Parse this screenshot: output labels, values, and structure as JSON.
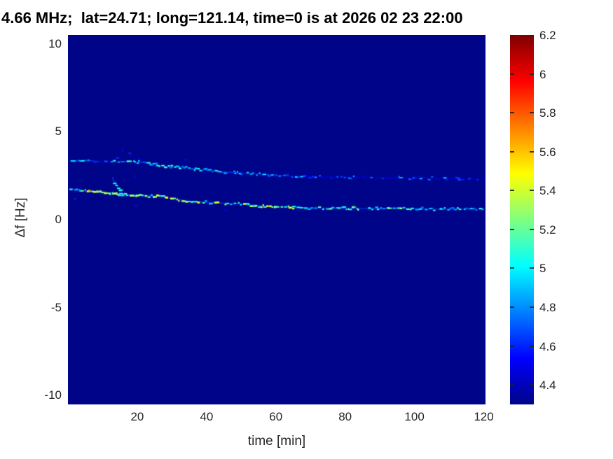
{
  "chart_data": {
    "type": "heatmap",
    "title": "4.66 MHz;  lat=24.71; long=121.14, time=0 is at 2026 02 23 22:00",
    "xlabel": "time [min]",
    "ylabel": "Δf [Hz]",
    "xlim": [
      0,
      120.5
    ],
    "ylim": [
      -10.5,
      10.5
    ],
    "grid": false,
    "x_ticks": [
      20,
      40,
      60,
      80,
      100,
      120
    ],
    "x_tick_labels": [
      "20",
      "40",
      "60",
      "80",
      "100",
      "120"
    ],
    "y_ticks": [
      10,
      5,
      0,
      -5,
      -10
    ],
    "y_tick_labels": [
      "10",
      "5",
      "0",
      "-5",
      "-10"
    ],
    "colorbar": {
      "position": "right",
      "min": 4.3,
      "max": 6.2,
      "ticks": [
        6.2,
        6,
        5.8,
        5.6,
        5.4,
        5.2,
        5,
        4.8,
        4.6,
        4.4
      ],
      "tick_labels": [
        "6.2",
        "6",
        "5.8",
        "5.6",
        "5.4",
        "5.2",
        "5",
        "4.8",
        "4.6",
        "4.4"
      ]
    },
    "colormap": {
      "name": "jet",
      "stops": [
        [
          0,
          "#000487"
        ],
        [
          0.125,
          "#0000ff"
        ],
        [
          0.375,
          "#00ffff"
        ],
        [
          0.625,
          "#ffff00"
        ],
        [
          0.875,
          "#ff0000"
        ],
        [
          1,
          "#800000"
        ]
      ]
    },
    "background_value": 4.3,
    "background_color": "#000489",
    "axes_color": "#262626",
    "title_color": "#000000",
    "seed": 11,
    "series": [
      {
        "name": "upper-trace",
        "style": "speckle-line",
        "points": [
          [
            1,
            3.32,
            4.9,
            0.75
          ],
          [
            4,
            3.36,
            4.9,
            0.8
          ],
          [
            7,
            3.34,
            4.85,
            0.75
          ],
          [
            9,
            3.3,
            4.7,
            0.3
          ],
          [
            12,
            3.27,
            4.8,
            0.35
          ],
          [
            15,
            3.3,
            4.95,
            0.8
          ],
          [
            18,
            3.3,
            4.9,
            0.85
          ],
          [
            21,
            3.27,
            4.9,
            0.85
          ],
          [
            24,
            3.18,
            4.95,
            0.85
          ],
          [
            27,
            3.06,
            5.0,
            0.85
          ],
          [
            30,
            3.0,
            4.95,
            0.8
          ],
          [
            34,
            2.95,
            4.9,
            0.8
          ],
          [
            38,
            2.85,
            4.95,
            0.8
          ],
          [
            42,
            2.78,
            4.9,
            0.8
          ],
          [
            46,
            2.7,
            4.85,
            0.75
          ],
          [
            50,
            2.66,
            4.8,
            0.75
          ],
          [
            55,
            2.6,
            4.8,
            0.7
          ],
          [
            60,
            2.52,
            4.8,
            0.7
          ],
          [
            64,
            2.48,
            4.75,
            0.6
          ],
          [
            68,
            2.46,
            4.72,
            0.55
          ],
          [
            72,
            2.45,
            4.65,
            0.5
          ],
          [
            78,
            2.43,
            4.7,
            0.55
          ],
          [
            84,
            2.41,
            4.7,
            0.5
          ],
          [
            90,
            2.4,
            4.65,
            0.5
          ],
          [
            96,
            2.38,
            4.7,
            0.5
          ],
          [
            102,
            2.36,
            4.65,
            0.45
          ],
          [
            108,
            2.35,
            4.67,
            0.45
          ],
          [
            114,
            2.33,
            4.6,
            0.45
          ],
          [
            120,
            2.31,
            4.65,
            0.5
          ]
        ]
      },
      {
        "name": "lower-trace",
        "style": "speckle-line",
        "points": [
          [
            0.5,
            1.78,
            4.95,
            0.8
          ],
          [
            2,
            1.72,
            4.9,
            0.7
          ],
          [
            4,
            1.65,
            5.0,
            0.75
          ],
          [
            6,
            1.6,
            5.4,
            0.85
          ],
          [
            8,
            1.56,
            5.5,
            0.9
          ],
          [
            10,
            1.52,
            5.3,
            0.85
          ],
          [
            12,
            1.47,
            5.1,
            0.8
          ],
          [
            14,
            1.44,
            5.2,
            0.85
          ],
          [
            16,
            1.42,
            5.15,
            0.85
          ],
          [
            18,
            1.4,
            5.2,
            0.85
          ],
          [
            20,
            1.39,
            5.1,
            0.85
          ],
          [
            22,
            1.37,
            5.15,
            0.85
          ],
          [
            24,
            1.34,
            5.2,
            0.85
          ],
          [
            26,
            1.31,
            5.3,
            0.85
          ],
          [
            28,
            1.28,
            5.25,
            0.85
          ],
          [
            30,
            1.22,
            5.35,
            0.85
          ],
          [
            32,
            1.15,
            5.2,
            0.8
          ],
          [
            34,
            1.08,
            5.15,
            0.8
          ],
          [
            36,
            1.04,
            5.1,
            0.8
          ],
          [
            38,
            1.01,
            5.2,
            0.8
          ],
          [
            40,
            0.99,
            5.15,
            0.8
          ],
          [
            43,
            0.96,
            5.25,
            0.8
          ],
          [
            46,
            0.93,
            5.1,
            0.8
          ],
          [
            49,
            0.9,
            5.15,
            0.8
          ],
          [
            52,
            0.86,
            5.2,
            0.8
          ],
          [
            55,
            0.8,
            5.25,
            0.8
          ],
          [
            58,
            0.76,
            5.3,
            0.85
          ],
          [
            61,
            0.72,
            5.2,
            0.85
          ],
          [
            64,
            0.7,
            5.25,
            0.85
          ],
          [
            67,
            0.68,
            5.1,
            0.8
          ],
          [
            70,
            0.67,
            5.0,
            0.75
          ],
          [
            74,
            0.66,
            5.05,
            0.75
          ],
          [
            78,
            0.65,
            5.0,
            0.75
          ],
          [
            82,
            0.64,
            5.05,
            0.7
          ],
          [
            86,
            0.63,
            5.0,
            0.7
          ],
          [
            90,
            0.64,
            5.05,
            0.7
          ],
          [
            94,
            0.66,
            5.0,
            0.7
          ],
          [
            98,
            0.64,
            5.1,
            0.7
          ],
          [
            102,
            0.62,
            5.0,
            0.7
          ],
          [
            106,
            0.6,
            4.95,
            0.7
          ],
          [
            110,
            0.6,
            5.0,
            0.7
          ],
          [
            114,
            0.6,
            4.95,
            0.7
          ],
          [
            117,
            0.58,
            5.0,
            0.7
          ],
          [
            120,
            0.56,
            4.9,
            0.7
          ]
        ]
      },
      {
        "name": "branch-between-traces",
        "style": "speckle-line",
        "points": [
          [
            12.8,
            2.42,
            5.0,
            0.85
          ],
          [
            13.4,
            2.15,
            5.05,
            0.85
          ],
          [
            14,
            1.95,
            5.0,
            0.85
          ],
          [
            14.8,
            1.75,
            4.95,
            0.8
          ],
          [
            15.6,
            1.55,
            4.9,
            0.75
          ],
          [
            16.2,
            1.45,
            4.85,
            0.6
          ]
        ]
      },
      {
        "name": "scatter-above-upper-trace",
        "style": "scatter",
        "points": [
          [
            14.5,
            3.6,
            4.6,
            0.6
          ],
          [
            16,
            3.85,
            4.55,
            0.6
          ],
          [
            17,
            3.72,
            4.6,
            0.5
          ],
          [
            18.5,
            3.55,
            4.55,
            0.5
          ],
          [
            21,
            3.5,
            4.5,
            0.45
          ],
          [
            24,
            3.45,
            4.55,
            0.4
          ],
          [
            28,
            3.4,
            4.5,
            0.35
          ],
          [
            33,
            3.35,
            4.5,
            0.3
          ],
          [
            17,
            2.6,
            4.55,
            0.4
          ],
          [
            19,
            2.4,
            4.5,
            0.35
          ]
        ]
      },
      {
        "name": "fuzz-below-lower-trace",
        "style": "scatter",
        "points": [
          [
            2,
            1.25,
            4.55,
            0.5
          ],
          [
            6,
            1.12,
            4.55,
            0.5
          ],
          [
            10,
            1.02,
            4.55,
            0.45
          ],
          [
            14,
            0.95,
            4.5,
            0.45
          ],
          [
            20,
            0.9,
            4.5,
            0.4
          ],
          [
            28,
            0.8,
            4.5,
            0.35
          ],
          [
            36,
            0.7,
            4.5,
            0.3
          ],
          [
            46,
            0.6,
            4.5,
            0.3
          ],
          [
            56,
            0.5,
            4.5,
            0.25
          ],
          [
            66,
            0.45,
            4.5,
            0.2
          ]
        ]
      }
    ]
  }
}
